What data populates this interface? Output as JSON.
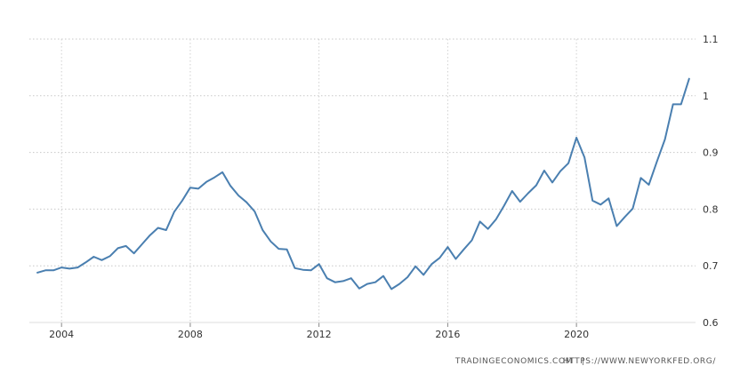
{
  "chart_data": {
    "type": "line",
    "title": "",
    "xlabel": "",
    "ylabel": "",
    "xlim": [
      2003.0,
      2023.7
    ],
    "ylim": [
      0.6,
      1.1
    ],
    "yticks": [
      0.6,
      0.7,
      0.8,
      0.9,
      1.0,
      1.1
    ],
    "ytick_labels": [
      "0.6",
      "0.7",
      "0.8",
      "0.9",
      "1",
      "1.1"
    ],
    "xticks": [
      2004,
      2008,
      2012,
      2016,
      2020
    ],
    "xtick_labels": [
      "2004",
      "2008",
      "2012",
      "2016",
      "2020"
    ],
    "grid": "horizontal dotted",
    "line_color": "#4a7fb0",
    "series": [
      {
        "x": [
          2003.25,
          2003.5,
          2003.75,
          2004.0,
          2004.25,
          2004.5,
          2004.75,
          2005.0,
          2005.25,
          2005.5,
          2005.75,
          2006.0,
          2006.25,
          2006.5,
          2006.75,
          2007.0,
          2007.25,
          2007.5,
          2007.75,
          2008.0,
          2008.25,
          2008.5,
          2008.75,
          2009.0,
          2009.25,
          2009.5,
          2009.75,
          2010.0,
          2010.25,
          2010.5,
          2010.75,
          2011.0,
          2011.25,
          2011.5,
          2011.75,
          2012.0,
          2012.25,
          2012.5,
          2012.75,
          2013.0,
          2013.25,
          2013.5,
          2013.75,
          2014.0,
          2014.25,
          2014.5,
          2014.75,
          2015.0,
          2015.25,
          2015.5,
          2015.75,
          2016.0,
          2016.25,
          2016.5,
          2016.75,
          2017.0,
          2017.25,
          2017.5,
          2017.75,
          2018.0,
          2018.25,
          2018.5,
          2018.75,
          2019.0,
          2019.25,
          2019.5,
          2019.75,
          2020.0,
          2020.25,
          2020.5,
          2020.75,
          2021.0,
          2021.25,
          2021.5,
          2021.75,
          2022.0,
          2022.25,
          2022.5,
          2022.75,
          2023.0,
          2023.25,
          2023.5
        ],
        "values": [
          0.688,
          0.692,
          0.692,
          0.697,
          0.695,
          0.697,
          0.706,
          0.716,
          0.71,
          0.717,
          0.731,
          0.735,
          0.722,
          0.738,
          0.754,
          0.767,
          0.763,
          0.795,
          0.815,
          0.838,
          0.836,
          0.848,
          0.856,
          0.865,
          0.841,
          0.824,
          0.812,
          0.796,
          0.763,
          0.743,
          0.73,
          0.729,
          0.696,
          0.693,
          0.692,
          0.703,
          0.678,
          0.671,
          0.673,
          0.678,
          0.66,
          0.668,
          0.671,
          0.682,
          0.659,
          0.668,
          0.68,
          0.699,
          0.684,
          0.703,
          0.714,
          0.733,
          0.712,
          0.729,
          0.745,
          0.778,
          0.765,
          0.782,
          0.806,
          0.832,
          0.813,
          0.828,
          0.842,
          0.868,
          0.847,
          0.867,
          0.881,
          0.926,
          0.891,
          0.815,
          0.808,
          0.819,
          0.77,
          0.786,
          0.801,
          0.855,
          0.843,
          0.884,
          0.923,
          0.985,
          0.985,
          1.03
        ]
      }
    ]
  },
  "source": {
    "left": "TRADINGECONOMICS.COM",
    "separator": "|",
    "right": "HTTPS://WWW.NEWYORKFED.ORG/"
  }
}
